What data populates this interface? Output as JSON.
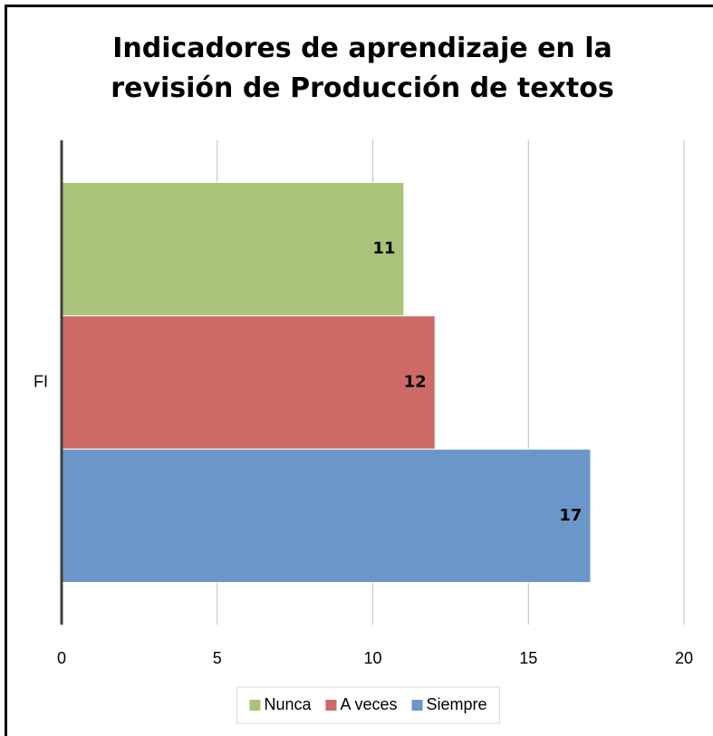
{
  "chart_data": {
    "type": "bar",
    "orientation": "horizontal",
    "title": "Indicadores de aprendizaje en la revisión de Producción de textos",
    "categories": [
      "FI"
    ],
    "series": [
      {
        "name": "Nunca",
        "color": "#a9c47a",
        "values": [
          11
        ]
      },
      {
        "name": "A veces",
        "color": "#cd6a67",
        "values": [
          12
        ]
      },
      {
        "name": "Siempre",
        "color": "#6b96c9",
        "values": [
          17
        ]
      }
    ],
    "xlim": [
      0,
      20
    ],
    "xticks": [
      0,
      5,
      10,
      15,
      20
    ],
    "grid": true,
    "legend": "bottom"
  }
}
